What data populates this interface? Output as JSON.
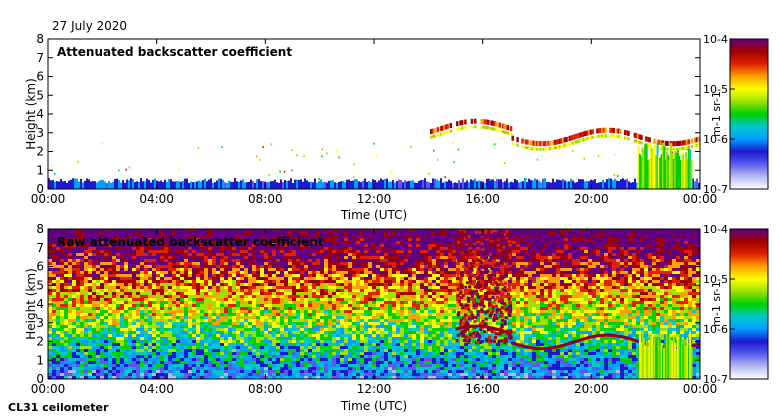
{
  "date": "27 July 2020",
  "instrument": "CL31 ceilometer",
  "colorbar": {
    "tick_labels": [
      "10-7",
      "10-6",
      "10-5",
      "10-4"
    ],
    "unit_label": "m-1 sr-1",
    "colors": [
      "#ffffff",
      "#b8b8f0",
      "#5a5af0",
      "#1a1ad0",
      "#00a0ff",
      "#00c8c8",
      "#00d000",
      "#a0e000",
      "#ffff00",
      "#ffa000",
      "#e02000",
      "#a00000",
      "#600080"
    ]
  },
  "chart_data": [
    {
      "type": "heatmap",
      "title": "Attenuated backscatter coefficient",
      "xlabel": "Time (UTC)",
      "ylabel": "Height (km)",
      "x_ticks": [
        "00:00",
        "04:00",
        "08:00",
        "12:00",
        "16:00",
        "20:00",
        "00:00"
      ],
      "y_ticks": [
        0,
        1,
        2,
        3,
        4,
        5,
        6,
        7,
        8
      ],
      "xlim_hours": [
        0,
        24
      ],
      "ylim_km": [
        0,
        8
      ],
      "colorbar_range": [
        1e-07,
        0.0001
      ],
      "features": {
        "boundary_layer_top_km": 0.45,
        "cloud_layer": {
          "start_hour": 14.0,
          "end_hour": 24.0,
          "base_km_approx": [
            2.3,
            3.5
          ]
        },
        "rain_shaft": {
          "start_hour": 21.7,
          "end_hour": 23.7,
          "top_km": 2.5
        }
      }
    },
    {
      "type": "heatmap",
      "title": "Raw attenuated backscatter coefficient",
      "xlabel": "Time (UTC)",
      "ylabel": "Height (km)",
      "x_ticks": [
        "00:00",
        "04:00",
        "08:00",
        "12:00",
        "16:00",
        "20:00",
        "00:00"
      ],
      "y_ticks": [
        0,
        1,
        2,
        3,
        4,
        5,
        6,
        7,
        8
      ],
      "xlim_hours": [
        0,
        24
      ],
      "ylim_km": [
        0,
        8
      ],
      "colorbar_range": [
        1e-07,
        0.0001
      ],
      "features": {
        "noise_dominated": true,
        "cloud_layer": {
          "start_hour": 15.0,
          "end_hour": 24.0,
          "base_km_approx": [
            2.0,
            3.2
          ]
        },
        "rain_shaft": {
          "start_hour": 21.7,
          "end_hour": 23.7,
          "top_km": 2.6
        }
      }
    }
  ]
}
